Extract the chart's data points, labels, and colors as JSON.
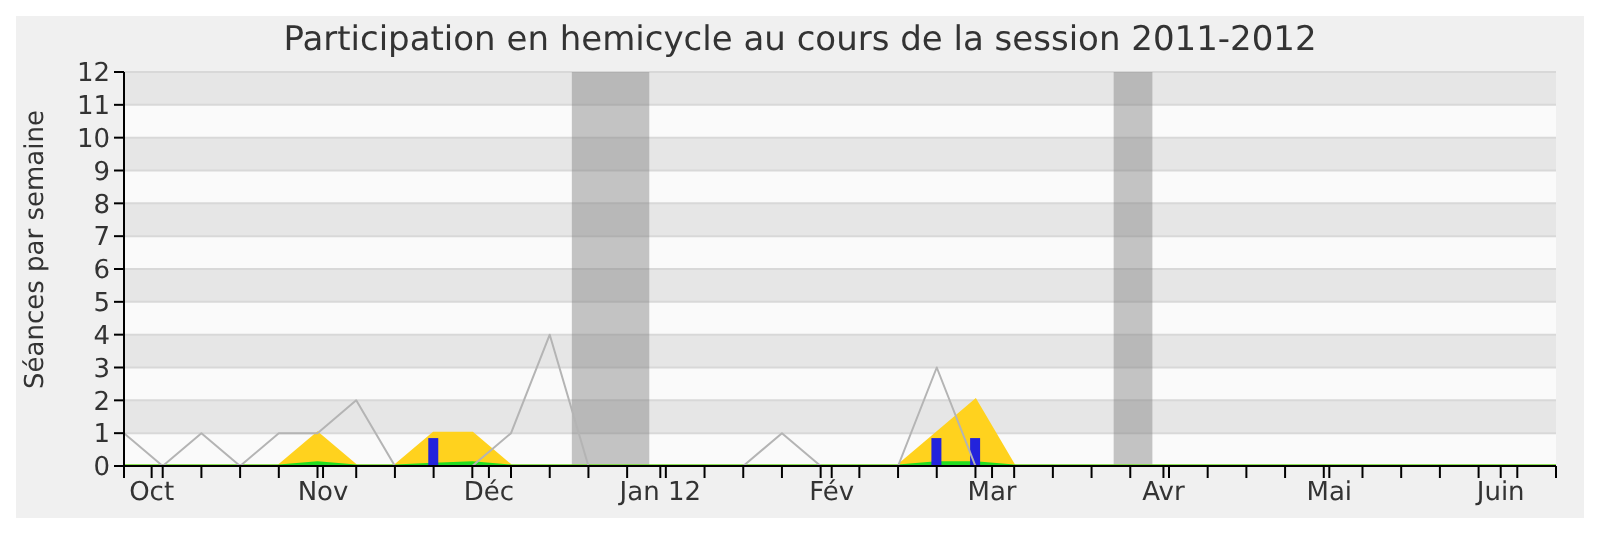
{
  "chart_data": {
    "type": "area",
    "title": "Participation en hemicycle au cours de la session 2011-2012",
    "ylabel": "Séances par semaine",
    "x": [
      "2011-09-26",
      "2011-10-03",
      "2011-10-10",
      "2011-10-17",
      "2011-10-24",
      "2011-10-31",
      "2011-11-07",
      "2011-11-14",
      "2011-11-21",
      "2011-11-28",
      "2011-12-05",
      "2011-12-12",
      "2011-12-19",
      "2011-12-26",
      "2012-01-02",
      "2012-01-09",
      "2012-01-16",
      "2012-01-23",
      "2012-01-30",
      "2012-02-06",
      "2012-02-13",
      "2012-02-20",
      "2012-02-27",
      "2012-03-05",
      "2012-03-12",
      "2012-03-19",
      "2012-03-26",
      "2012-04-02",
      "2012-04-09",
      "2012-04-16",
      "2012-04-23",
      "2012-04-30",
      "2012-05-07",
      "2012-05-14",
      "2012-05-21",
      "2012-05-28",
      "2012-06-04",
      "2012-06-11"
    ],
    "series": [
      {
        "color": "#ffd21e",
        "values": [
          0,
          0,
          0,
          0,
          0,
          1,
          0,
          0,
          1,
          1,
          0,
          0,
          0,
          0,
          0,
          0,
          0,
          0,
          0,
          0,
          0,
          1,
          2,
          0,
          0,
          0,
          0,
          0,
          0,
          0,
          0,
          0,
          0,
          0,
          0,
          0,
          0,
          0
        ]
      },
      {
        "color": "#22dd22",
        "values": [
          0,
          0,
          0,
          0,
          0,
          0.1,
          0,
          0,
          0.05,
          0.1,
          0,
          0,
          0,
          0,
          0,
          0,
          0,
          0,
          0,
          0,
          0,
          0.1,
          0.1,
          0,
          0,
          0,
          0,
          0,
          0,
          0,
          0,
          0,
          0,
          0,
          0,
          0,
          0,
          0
        ]
      },
      {
        "type": "bar",
        "color": "#2323dc",
        "values": [
          0,
          0,
          0,
          0,
          0,
          0,
          0,
          0,
          0.85,
          0,
          0,
          0,
          0,
          0,
          0,
          0,
          0,
          0,
          0,
          0,
          0,
          0.85,
          0.85,
          0,
          0,
          0,
          0,
          0,
          0,
          0,
          0,
          0,
          0,
          0,
          0,
          0,
          0,
          0
        ]
      },
      {
        "type": "line",
        "color": "#b4b4b4",
        "values": [
          1,
          0,
          1,
          0,
          1,
          1,
          2,
          0,
          0,
          0,
          1,
          4,
          0,
          0,
          0,
          0,
          0,
          1,
          0,
          0,
          0,
          3,
          0,
          0,
          0,
          0,
          0,
          0,
          0,
          0,
          0,
          0,
          0,
          0,
          0,
          0,
          0,
          0
        ]
      }
    ],
    "xlim": [
      "2011-09-26",
      "2012-06-11"
    ],
    "xticks": [
      {
        "value": "2011-09-26",
        "label": null
      },
      {
        "value": "2011-10-01",
        "label": "Oct"
      },
      {
        "value": "2011-11-01",
        "label": "Nov"
      },
      {
        "value": "2011-12-01",
        "label": "Déc"
      },
      {
        "value": "2012-01-01",
        "label": "Jan 12"
      },
      {
        "value": "2012-02-01",
        "label": "Fév"
      },
      {
        "value": "2012-03-01",
        "label": "Mar"
      },
      {
        "value": "2012-04-01",
        "label": "Avr"
      },
      {
        "value": "2012-05-01",
        "label": "Mai"
      },
      {
        "value": "2012-06-01",
        "label": "Juin"
      },
      {
        "value": "2011-10-03",
        "label": null
      },
      {
        "value": "2011-10-10",
        "label": null
      },
      {
        "value": "2011-10-17",
        "label": null
      },
      {
        "value": "2011-10-24",
        "label": null
      },
      {
        "value": "2011-10-31",
        "label": null
      },
      {
        "value": "2011-11-07",
        "label": null
      },
      {
        "value": "2011-11-14",
        "label": null
      },
      {
        "value": "2011-11-21",
        "label": null
      },
      {
        "value": "2011-11-28",
        "label": null
      },
      {
        "value": "2011-12-05",
        "label": null
      },
      {
        "value": "2011-12-12",
        "label": null
      },
      {
        "value": "2011-12-19",
        "label": null
      },
      {
        "value": "2011-12-26",
        "label": null
      },
      {
        "value": "2012-01-02",
        "label": null
      },
      {
        "value": "2012-01-09",
        "label": null
      },
      {
        "value": "2012-01-16",
        "label": null
      },
      {
        "value": "2012-01-23",
        "label": null
      },
      {
        "value": "2012-01-30",
        "label": null
      },
      {
        "value": "2012-02-06",
        "label": null
      },
      {
        "value": "2012-02-13",
        "label": null
      },
      {
        "value": "2012-02-20",
        "label": null
      },
      {
        "value": "2012-02-27",
        "label": null
      },
      {
        "value": "2012-03-05",
        "label": null
      },
      {
        "value": "2012-03-12",
        "label": null
      },
      {
        "value": "2012-03-19",
        "label": null
      },
      {
        "value": "2012-03-26",
        "label": null
      },
      {
        "value": "2012-04-02",
        "label": null
      },
      {
        "value": "2012-04-09",
        "label": null
      },
      {
        "value": "2012-04-16",
        "label": null
      },
      {
        "value": "2012-04-23",
        "label": null
      },
      {
        "value": "2012-04-30",
        "label": null
      },
      {
        "value": "2012-05-07",
        "label": null
      },
      {
        "value": "2012-05-14",
        "label": null
      },
      {
        "value": "2012-05-21",
        "label": null
      },
      {
        "value": "2012-05-28",
        "label": null
      },
      {
        "value": "2012-06-04",
        "label": null
      },
      {
        "value": "2012-06-11",
        "label": null
      }
    ],
    "ylim": [
      0,
      12
    ],
    "yticks": [
      0,
      1,
      2,
      3,
      4,
      5,
      6,
      7,
      8,
      9,
      10,
      11,
      12
    ],
    "grid": "y",
    "bands": [
      {
        "axis": "x",
        "from": "2011-12-16",
        "to": "2011-12-30",
        "color": "#808080"
      },
      {
        "axis": "x",
        "from": "2012-03-23",
        "to": "2012-03-30",
        "color": "#808080"
      }
    ]
  }
}
